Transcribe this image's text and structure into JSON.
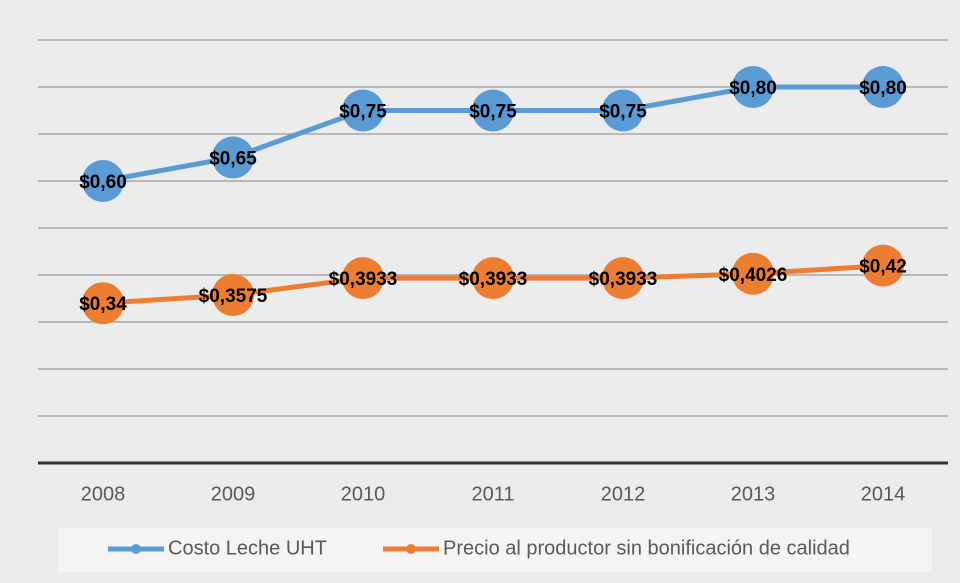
{
  "chart_data": {
    "type": "line",
    "categories": [
      "2008",
      "2009",
      "2010",
      "2011",
      "2012",
      "2013",
      "2014"
    ],
    "series": [
      {
        "name": "Costo Leche UHT",
        "color": "#5b9bd5",
        "values": [
          0.6,
          0.65,
          0.75,
          0.75,
          0.75,
          0.8,
          0.8
        ],
        "value_labels": [
          "$0,60",
          "$0,65",
          "$0,75",
          "$0,75",
          "$0,75",
          "$0,80",
          "$0,80"
        ]
      },
      {
        "name": "Precio al productor sin bonificación de calidad",
        "color": "#ed7d31",
        "values": [
          0.34,
          0.3575,
          0.3933,
          0.3933,
          0.3933,
          0.4026,
          0.42
        ],
        "value_labels": [
          "$0,34",
          "$0,3575",
          "$0,3933",
          "$0,3933",
          "$0,3933",
          "$0,4026",
          "$0,42"
        ]
      }
    ],
    "ylim": [
      0,
      0.9
    ],
    "yticks": [
      0,
      0.1,
      0.2,
      0.3,
      0.4,
      0.5,
      0.6,
      0.7,
      0.8,
      0.9
    ],
    "grid": true,
    "legend": "bottom"
  }
}
